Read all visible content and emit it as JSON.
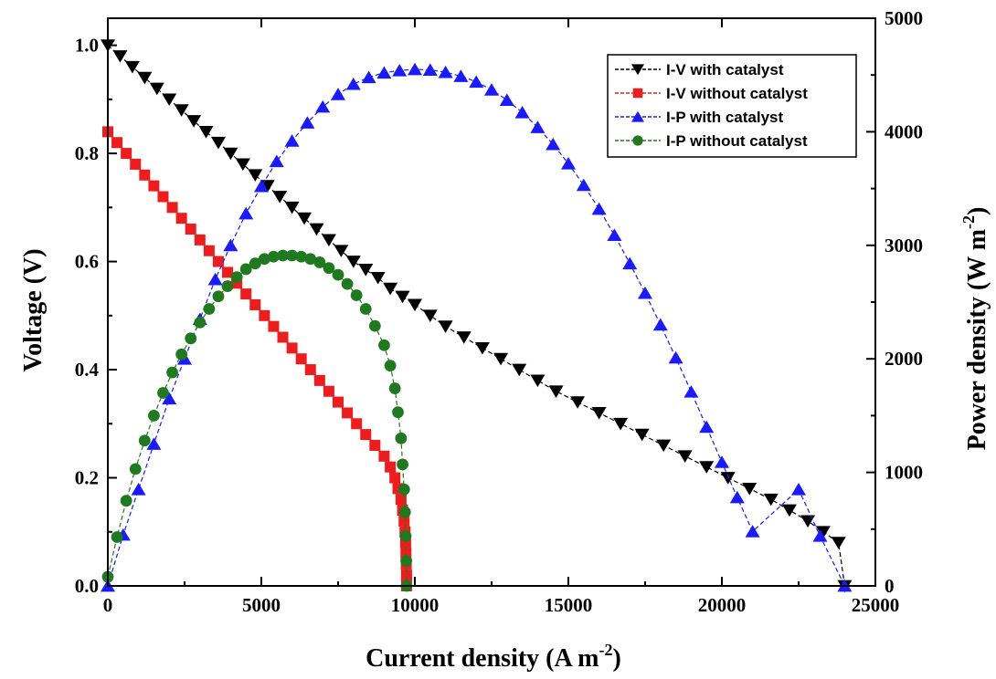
{
  "chart_data": {
    "type": "line",
    "x_axis": {
      "label": "Current density (A m",
      "label_sup": "-2",
      "label_end": ")",
      "range": [
        0,
        25000
      ],
      "ticks": [
        0,
        5000,
        10000,
        15000,
        20000,
        25000
      ],
      "tick_labels": [
        "0",
        "5000",
        "10000",
        "15000",
        "20000",
        "25000"
      ]
    },
    "y_axis_left": {
      "label": "Voltage (V)",
      "range": [
        0,
        1.05
      ],
      "ticks": [
        0,
        0.2,
        0.4,
        0.6,
        0.8,
        1.0
      ],
      "tick_labels": [
        "0.0",
        "0.2",
        "0.4",
        "0.6",
        "0.8",
        "1.0"
      ]
    },
    "y_axis_right": {
      "label": "Power density (W m",
      "label_sup": "-2",
      "label_end": ")",
      "range": [
        0,
        5000
      ],
      "ticks": [
        0,
        1000,
        2000,
        3000,
        4000,
        5000
      ],
      "tick_labels": [
        "0",
        "1000",
        "2000",
        "3000",
        "4000",
        "5000"
      ]
    },
    "legend_position": "top-right",
    "grid": false,
    "series": [
      {
        "name": "I-V with catalyst",
        "axis": "left",
        "marker": "triangle-down",
        "color": "#000000",
        "points": [
          [
            0,
            1.0
          ],
          [
            400,
            0.98
          ],
          [
            800,
            0.96
          ],
          [
            1200,
            0.94
          ],
          [
            1600,
            0.92
          ],
          [
            2000,
            0.9
          ],
          [
            2400,
            0.88
          ],
          [
            2800,
            0.86
          ],
          [
            3200,
            0.84
          ],
          [
            3600,
            0.82
          ],
          [
            4000,
            0.8
          ],
          [
            4400,
            0.78
          ],
          [
            4800,
            0.76
          ],
          [
            5200,
            0.74
          ],
          [
            5600,
            0.72
          ],
          [
            6000,
            0.7
          ],
          [
            6400,
            0.68
          ],
          [
            6800,
            0.66
          ],
          [
            7200,
            0.64
          ],
          [
            7600,
            0.62
          ],
          [
            8000,
            0.6
          ],
          [
            8400,
            0.585
          ],
          [
            8800,
            0.57
          ],
          [
            9200,
            0.55
          ],
          [
            9600,
            0.535
          ],
          [
            10000,
            0.52
          ],
          [
            10500,
            0.5
          ],
          [
            11000,
            0.48
          ],
          [
            11600,
            0.46
          ],
          [
            12200,
            0.44
          ],
          [
            12800,
            0.42
          ],
          [
            13400,
            0.4
          ],
          [
            14000,
            0.38
          ],
          [
            14600,
            0.36
          ],
          [
            15300,
            0.34
          ],
          [
            16000,
            0.32
          ],
          [
            16700,
            0.3
          ],
          [
            17400,
            0.28
          ],
          [
            18100,
            0.26
          ],
          [
            18800,
            0.24
          ],
          [
            19500,
            0.22
          ],
          [
            20200,
            0.2
          ],
          [
            20900,
            0.18
          ],
          [
            21600,
            0.16
          ],
          [
            22200,
            0.14
          ],
          [
            22800,
            0.12
          ],
          [
            23300,
            0.1
          ],
          [
            23800,
            0.08
          ],
          [
            24000,
            0.0
          ]
        ]
      },
      {
        "name": "I-V without catalyst",
        "axis": "left",
        "marker": "square",
        "color": "#ee1c1c",
        "points": [
          [
            0,
            0.84
          ],
          [
            300,
            0.82
          ],
          [
            600,
            0.8
          ],
          [
            900,
            0.78
          ],
          [
            1200,
            0.76
          ],
          [
            1500,
            0.74
          ],
          [
            1800,
            0.72
          ],
          [
            2100,
            0.7
          ],
          [
            2400,
            0.68
          ],
          [
            2700,
            0.66
          ],
          [
            3000,
            0.64
          ],
          [
            3300,
            0.62
          ],
          [
            3600,
            0.6
          ],
          [
            3900,
            0.58
          ],
          [
            4200,
            0.56
          ],
          [
            4500,
            0.54
          ],
          [
            4800,
            0.52
          ],
          [
            5100,
            0.5
          ],
          [
            5400,
            0.48
          ],
          [
            5700,
            0.46
          ],
          [
            6000,
            0.44
          ],
          [
            6300,
            0.42
          ],
          [
            6600,
            0.4
          ],
          [
            6900,
            0.38
          ],
          [
            7200,
            0.36
          ],
          [
            7500,
            0.34
          ],
          [
            7800,
            0.32
          ],
          [
            8100,
            0.3
          ],
          [
            8400,
            0.28
          ],
          [
            8700,
            0.26
          ],
          [
            9000,
            0.24
          ],
          [
            9200,
            0.22
          ],
          [
            9350,
            0.2
          ],
          [
            9450,
            0.18
          ],
          [
            9550,
            0.16
          ],
          [
            9600,
            0.14
          ],
          [
            9650,
            0.12
          ],
          [
            9680,
            0.1
          ],
          [
            9700,
            0.08
          ],
          [
            9710,
            0.06
          ],
          [
            9720,
            0.04
          ],
          [
            9730,
            0.02
          ],
          [
            9730,
            0.0
          ]
        ]
      },
      {
        "name": "I-P with catalyst",
        "axis": "right",
        "marker": "triangle-up",
        "color": "#1a1aff",
        "points": [
          [
            0,
            0
          ],
          [
            500,
            450
          ],
          [
            1000,
            850
          ],
          [
            1500,
            1250
          ],
          [
            2000,
            1650
          ],
          [
            2500,
            2000
          ],
          [
            3000,
            2350
          ],
          [
            3500,
            2700
          ],
          [
            4000,
            3000
          ],
          [
            4500,
            3280
          ],
          [
            5000,
            3520
          ],
          [
            5500,
            3740
          ],
          [
            6000,
            3920
          ],
          [
            6500,
            4080
          ],
          [
            7000,
            4220
          ],
          [
            7500,
            4330
          ],
          [
            8000,
            4420
          ],
          [
            8500,
            4480
          ],
          [
            9000,
            4520
          ],
          [
            9500,
            4540
          ],
          [
            10000,
            4550
          ],
          [
            10500,
            4545
          ],
          [
            11000,
            4525
          ],
          [
            11500,
            4490
          ],
          [
            12000,
            4440
          ],
          [
            12500,
            4370
          ],
          [
            13000,
            4280
          ],
          [
            13500,
            4170
          ],
          [
            14000,
            4040
          ],
          [
            14500,
            3890
          ],
          [
            15000,
            3720
          ],
          [
            15500,
            3530
          ],
          [
            16000,
            3320
          ],
          [
            16500,
            3090
          ],
          [
            17000,
            2840
          ],
          [
            17500,
            2580
          ],
          [
            18000,
            2300
          ],
          [
            18500,
            2010
          ],
          [
            19000,
            1710
          ],
          [
            19500,
            1400
          ],
          [
            20000,
            1090
          ],
          [
            20500,
            780
          ],
          [
            21000,
            480
          ],
          [
            22500,
            850
          ],
          [
            23200,
            440
          ],
          [
            24000,
            0
          ]
        ]
      },
      {
        "name": "I-P without catalyst",
        "axis": "right",
        "marker": "circle",
        "color": "#1f7a1f",
        "points": [
          [
            0,
            80
          ],
          [
            300,
            430
          ],
          [
            600,
            750
          ],
          [
            900,
            1030
          ],
          [
            1200,
            1280
          ],
          [
            1500,
            1500
          ],
          [
            1800,
            1700
          ],
          [
            2100,
            1880
          ],
          [
            2400,
            2040
          ],
          [
            2700,
            2180
          ],
          [
            3000,
            2320
          ],
          [
            3300,
            2440
          ],
          [
            3600,
            2550
          ],
          [
            3900,
            2640
          ],
          [
            4200,
            2720
          ],
          [
            4500,
            2790
          ],
          [
            4800,
            2840
          ],
          [
            5100,
            2880
          ],
          [
            5400,
            2900
          ],
          [
            5700,
            2910
          ],
          [
            6000,
            2910
          ],
          [
            6300,
            2900
          ],
          [
            6600,
            2880
          ],
          [
            6900,
            2850
          ],
          [
            7200,
            2800
          ],
          [
            7500,
            2740
          ],
          [
            7800,
            2660
          ],
          [
            8100,
            2560
          ],
          [
            8400,
            2440
          ],
          [
            8700,
            2290
          ],
          [
            9000,
            2120
          ],
          [
            9200,
            1940
          ],
          [
            9350,
            1740
          ],
          [
            9450,
            1530
          ],
          [
            9550,
            1300
          ],
          [
            9600,
            1070
          ],
          [
            9650,
            850
          ],
          [
            9680,
            650
          ],
          [
            9700,
            440
          ],
          [
            9720,
            220
          ],
          [
            9730,
            0
          ]
        ]
      }
    ]
  },
  "legend": [
    {
      "label": "I-V with catalyst",
      "marker": "triangle-down",
      "color": "#000000"
    },
    {
      "label": "I-V without catalyst",
      "marker": "square",
      "color": "#ee1c1c"
    },
    {
      "label": "I-P with catalyst",
      "marker": "triangle-up",
      "color": "#1a1aff"
    },
    {
      "label": "I-P without catalyst",
      "marker": "circle",
      "color": "#1f7a1f"
    }
  ]
}
